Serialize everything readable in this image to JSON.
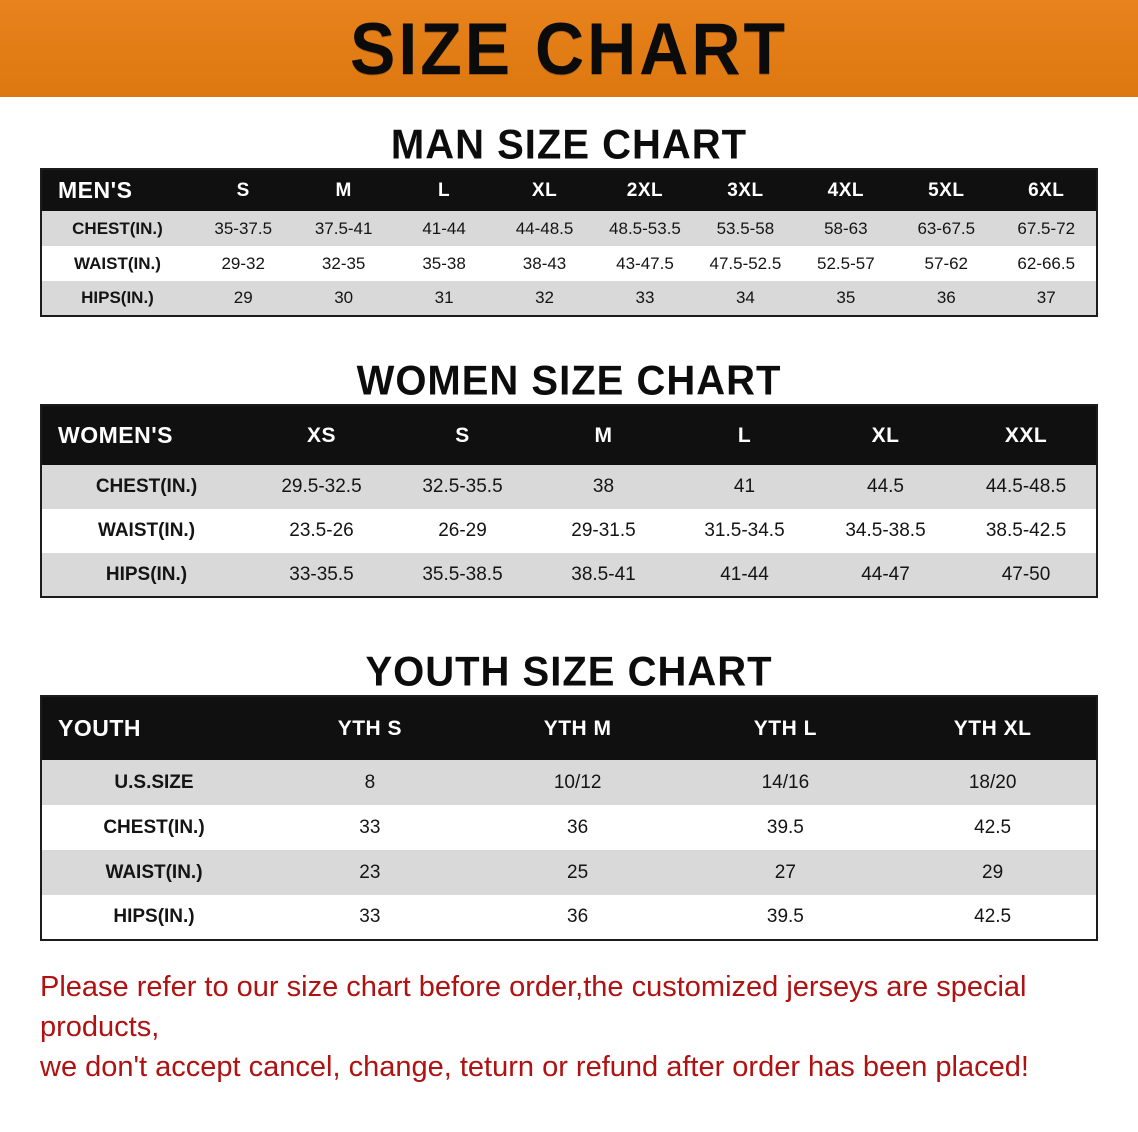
{
  "banner": {
    "title": "SIZE CHART"
  },
  "colors": {
    "banner_bg": "#E8831D",
    "table_header_bg": "#101010",
    "row_alt_bg": "#D9D9D9",
    "footer_text": "#B01111"
  },
  "chart_data": [
    {
      "type": "table",
      "title": "MAN SIZE CHART",
      "header": [
        "MEN'S",
        "S",
        "M",
        "L",
        "XL",
        "2XL",
        "3XL",
        "4XL",
        "5XL",
        "6XL"
      ],
      "rows": [
        [
          "CHEST(IN.)",
          "35-37.5",
          "37.5-41",
          "41-44",
          "44-48.5",
          "48.5-53.5",
          "53.5-58",
          "58-63",
          "63-67.5",
          "67.5-72"
        ],
        [
          "WAIST(IN.)",
          "29-32",
          "32-35",
          "35-38",
          "38-43",
          "43-47.5",
          "47.5-52.5",
          "52.5-57",
          "57-62",
          "62-66.5"
        ],
        [
          "HIPS(IN.)",
          "29",
          "30",
          "31",
          "32",
          "33",
          "34",
          "35",
          "36",
          "37"
        ]
      ]
    },
    {
      "type": "table",
      "title": "WOMEN SIZE CHART",
      "header": [
        "WOMEN'S",
        "XS",
        "S",
        "M",
        "L",
        "XL",
        "XXL"
      ],
      "rows": [
        [
          "CHEST(IN.)",
          "29.5-32.5",
          "32.5-35.5",
          "38",
          "41",
          "44.5",
          "44.5-48.5"
        ],
        [
          "WAIST(IN.)",
          "23.5-26",
          "26-29",
          "29-31.5",
          "31.5-34.5",
          "34.5-38.5",
          "38.5-42.5"
        ],
        [
          "HIPS(IN.)",
          "33-35.5",
          "35.5-38.5",
          "38.5-41",
          "41-44",
          "44-47",
          "47-50"
        ]
      ]
    },
    {
      "type": "table",
      "title": "YOUTH SIZE CHART",
      "header": [
        "YOUTH",
        "YTH S",
        "YTH M",
        "YTH L",
        "YTH XL"
      ],
      "rows": [
        [
          "U.S.SIZE",
          "8",
          "10/12",
          "14/16",
          "18/20"
        ],
        [
          "CHEST(IN.)",
          "33",
          "36",
          "39.5",
          "42.5"
        ],
        [
          "WAIST(IN.)",
          "23",
          "25",
          "27",
          "29"
        ],
        [
          "HIPS(IN.)",
          "33",
          "36",
          "39.5",
          "42.5"
        ]
      ]
    }
  ],
  "footer": {
    "lines": [
      "Please refer to our size chart before order,the customized jerseys are special products,",
      "we don't accept cancel, change, teturn or refund after order has been placed!"
    ]
  }
}
